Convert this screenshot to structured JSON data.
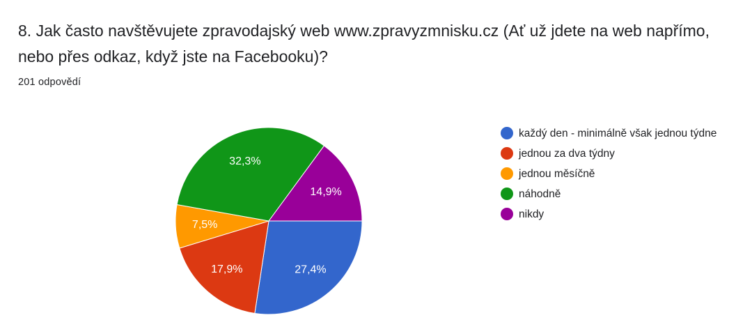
{
  "question": {
    "title": "8. Jak často navštěvujete zpravodajský web www.zpravyzmnisku.cz (Ať už jdete na web napřímo, nebo přes odkaz, když jste na Facebooku)?",
    "response_count": "201 odpovědí"
  },
  "chart_data": {
    "type": "pie",
    "categories": [
      "každý den - minimálně však jednou týdne",
      "jednou za dva týdny",
      "jednou měsíčně",
      "náhodně",
      "nikdy"
    ],
    "values": [
      27.4,
      17.9,
      7.5,
      32.3,
      14.9
    ],
    "labels": [
      "27,4%",
      "17,9%",
      "7,5%",
      "32,3%",
      "14,9%"
    ],
    "colors": [
      "#3366cc",
      "#dc3912",
      "#ff9900",
      "#109618",
      "#990099"
    ],
    "start": "3 o'clock, clockwise",
    "legend_position": "right"
  }
}
